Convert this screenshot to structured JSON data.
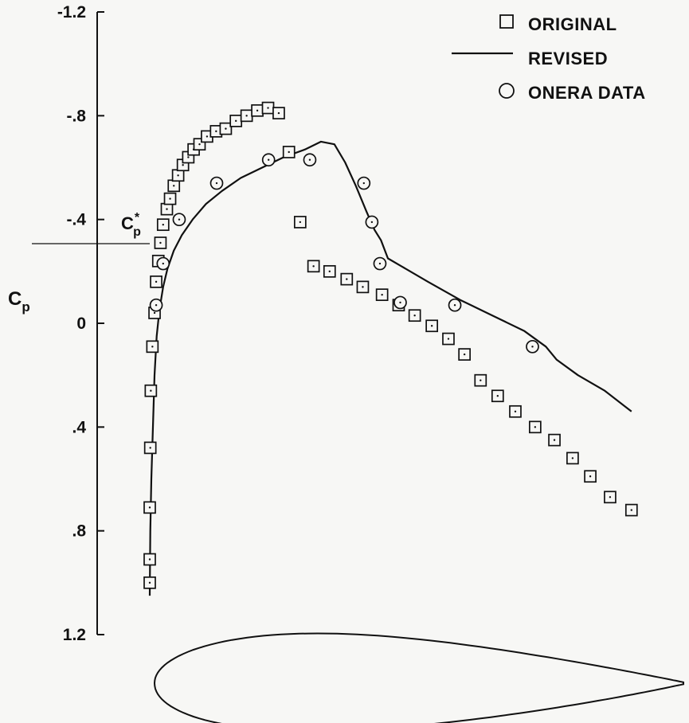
{
  "chart_data": {
    "type": "scatter",
    "xlabel": "",
    "ylabel": "C",
    "ylabel_subscript": "p",
    "ylim": [
      -1.2,
      1.2
    ],
    "y_inverted": true,
    "xlim": [
      0,
      1
    ],
    "yticks": [
      {
        "value": -1.2,
        "label": "-1.2"
      },
      {
        "value": -0.8,
        "label": "-.8"
      },
      {
        "value": -0.4,
        "label": "-.4"
      },
      {
        "value": 0,
        "label": "0"
      },
      {
        "value": 0.4,
        "label": ".4"
      },
      {
        "value": 0.8,
        "label": ".8"
      },
      {
        "value": 1.2,
        "label": "1.2"
      }
    ],
    "annotation": {
      "main": "C",
      "sub": "p",
      "sup": "*",
      "value": -0.3
    },
    "legend_position": "top-right",
    "grid": false,
    "series": [
      {
        "name": "ORIGINAL",
        "type": "scatter",
        "marker": "square",
        "x": [
          0.0,
          0.0,
          0.0,
          0.001,
          0.002,
          0.005,
          0.009,
          0.012,
          0.016,
          0.02,
          0.025,
          0.032,
          0.038,
          0.045,
          0.053,
          0.062,
          0.072,
          0.082,
          0.093,
          0.107,
          0.124,
          0.142,
          0.161,
          0.181,
          0.201,
          0.221,
          0.241,
          0.26,
          0.281,
          0.306,
          0.336,
          0.368,
          0.398,
          0.434,
          0.465,
          0.495,
          0.527,
          0.558,
          0.588,
          0.618,
          0.65,
          0.683,
          0.72,
          0.756,
          0.79,
          0.823,
          0.86,
          0.9
        ],
        "y": [
          1.0,
          0.91,
          0.71,
          0.48,
          0.26,
          0.09,
          -0.04,
          -0.16,
          -0.24,
          -0.31,
          -0.38,
          -0.44,
          -0.48,
          -0.53,
          -0.57,
          -0.61,
          -0.64,
          -0.67,
          -0.69,
          -0.72,
          -0.74,
          -0.75,
          -0.78,
          -0.8,
          -0.82,
          -0.83,
          -0.81,
          -0.66,
          -0.39,
          -0.22,
          -0.2,
          -0.17,
          -0.14,
          -0.11,
          -0.07,
          -0.03,
          0.01,
          0.06,
          0.12,
          0.22,
          0.28,
          0.34,
          0.4,
          0.45,
          0.52,
          0.59,
          0.67,
          0.72
        ]
      },
      {
        "name": "REVISED",
        "type": "line",
        "x": [
          0.0,
          0.001,
          0.003,
          0.006,
          0.009,
          0.013,
          0.018,
          0.025,
          0.033,
          0.045,
          0.06,
          0.08,
          0.105,
          0.135,
          0.17,
          0.21,
          0.25,
          0.29,
          0.32,
          0.345,
          0.365,
          0.385,
          0.405,
          0.42,
          0.432,
          0.445,
          0.47,
          0.52,
          0.58,
          0.64,
          0.7,
          0.74,
          0.76,
          0.8,
          0.85,
          0.9
        ],
        "y": [
          1.05,
          0.8,
          0.6,
          0.4,
          0.2,
          0.05,
          -0.05,
          -0.14,
          -0.21,
          -0.28,
          -0.34,
          -0.4,
          -0.46,
          -0.51,
          -0.56,
          -0.6,
          -0.64,
          -0.67,
          -0.7,
          -0.69,
          -0.62,
          -0.53,
          -0.43,
          -0.36,
          -0.32,
          -0.25,
          -0.22,
          -0.16,
          -0.09,
          -0.03,
          0.03,
          0.09,
          0.14,
          0.2,
          0.26,
          0.34
        ]
      },
      {
        "name": "ONERA DATA",
        "type": "scatter",
        "marker": "circle",
        "x": [
          0.012,
          0.025,
          0.055,
          0.125,
          0.222,
          0.299,
          0.4,
          0.415,
          0.43,
          0.468,
          0.57,
          0.715
        ],
        "y": [
          -0.07,
          -0.23,
          -0.4,
          -0.54,
          -0.63,
          -0.63,
          -0.54,
          -0.39,
          -0.23,
          -0.08,
          -0.07,
          0.09
        ]
      }
    ],
    "airfoil": {
      "thickness_ratio": 0.12
    }
  }
}
